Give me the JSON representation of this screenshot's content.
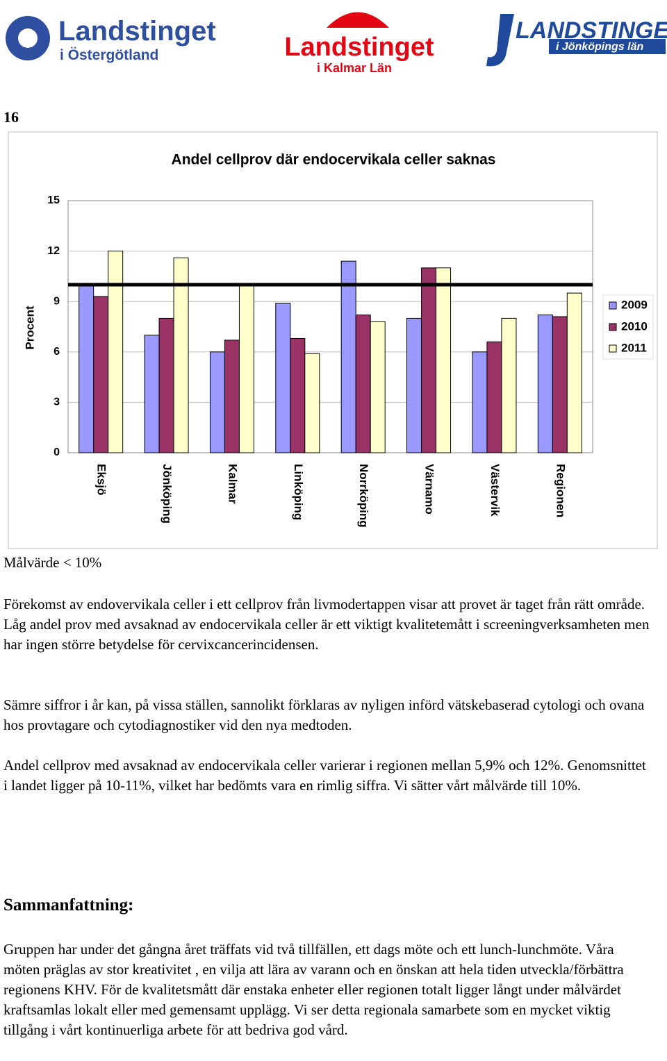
{
  "header": {
    "logos": [
      {
        "name": "Landstinget",
        "sub": "i Östergötland"
      },
      {
        "name": "Landstinget",
        "sub": "i Kalmar Län"
      },
      {
        "name": "LANDSTINGET",
        "sub": "i Jönköpings län"
      }
    ]
  },
  "page_number": "16",
  "chart_data": {
    "type": "bar",
    "title": "Andel cellprov där endocervikala celler saknas",
    "y_label": "Procent",
    "categories": [
      "Eksjö",
      "Jönköping",
      "Kalmar",
      "Linköping",
      "Norrköping",
      "Värnamo",
      "Västervik",
      "Regionen"
    ],
    "series": [
      {
        "name": "2009",
        "color": "#9999ff",
        "values": [
          10.0,
          7.0,
          6.0,
          8.9,
          11.4,
          8.0,
          6.0,
          8.2
        ]
      },
      {
        "name": "2010",
        "color": "#993366",
        "values": [
          9.3,
          8.0,
          6.7,
          6.8,
          8.2,
          11.0,
          6.6,
          8.1
        ]
      },
      {
        "name": "2011",
        "color": "#ffffcc",
        "values": [
          12.0,
          11.6,
          10.0,
          5.9,
          7.8,
          11.0,
          8.0,
          9.5
        ]
      }
    ],
    "target_line": 10,
    "ylim": [
      0,
      15
    ],
    "yticks": [
      0,
      3,
      6,
      9,
      12,
      15
    ],
    "grid": true,
    "legend": "right"
  },
  "target_text": "Målvärde < 10%",
  "paragraphs": [
    "Förekomst av endovervikala celler i ett cellprov från livmodertappen visar att provet är taget från rätt område. Låg andel prov med avsaknad av endocervikala celler är ett viktigt kvalitetemått i screeningverksamheten men har ingen större betydelse för cervixcancerincidensen.",
    "Sämre siffror i år kan, på vissa ställen, sannolikt förklaras av nyligen införd vätskebaserad cytologi och ovana hos provtagare och cytodiagnostiker vid den nya medtoden.",
    "Andel cellprov med avsaknad av endocervikala celler varierar i regionen mellan 5,9% och 12%. Genomsnittet i landet ligger på 10-11%, vilket har bedömts vara en rimlig siffra. Vi sätter vårt målvärde till 10%."
  ],
  "summary": {
    "heading": "Sammanfattning:",
    "text": "Gruppen har under det gångna året träffats vid två tillfällen, ett dags möte och ett lunch-lunchmöte. Våra möten  präglas av stor kreativitet , en vilja att lära av varann och en önskan att hela tiden utveckla/förbättra regionens  KHV. För de kvalitetsmått där enstaka enheter eller regionen totalt ligger långt under målvärdet kraftsamlas lokalt eller med gemensamt upplägg. Vi ser detta regionala samarbete som en mycket viktig tillgång i vårt kontinuerliga arbete för att bedriva god vård."
  }
}
